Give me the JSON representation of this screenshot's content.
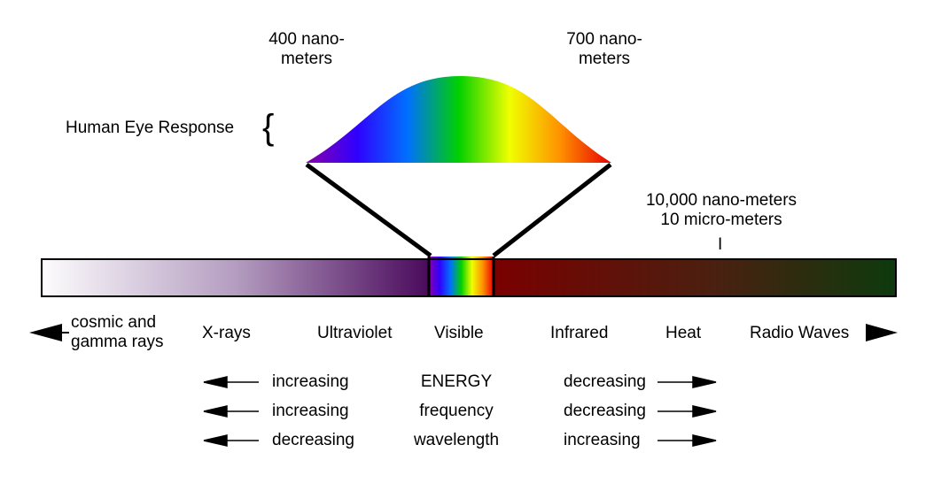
{
  "labels": {
    "wavelength_400": [
      "400 nano-",
      "meters"
    ],
    "wavelength_700": [
      "700 nano-",
      "meters"
    ],
    "eye_response": "Human Eye Response",
    "brace": "{",
    "long_wavelength": [
      "10,000 nano-meters",
      "10 micro-meters"
    ],
    "tick": "I"
  },
  "bands": {
    "cosmic": [
      "cosmic and",
      "gamma rays"
    ],
    "xrays": "X-rays",
    "ultraviolet": "Ultraviolet",
    "visible": "Visible",
    "infrared": "Infrared",
    "heat": "Heat",
    "radio": "Radio Waves"
  },
  "properties": [
    {
      "left": "increasing",
      "name": "ENERGY",
      "right": "decreasing"
    },
    {
      "left": "increasing",
      "name": "frequency",
      "right": "decreasing"
    },
    {
      "left": "decreasing",
      "name": "wavelength",
      "right": "increasing"
    }
  ],
  "colors": {
    "uv_start": "#fdfcfd",
    "uv_mid": "#b49dc0",
    "uv_end": "#4a0a5c",
    "ir_start": "#7a0000",
    "ir_mid": "#4a2010",
    "ir_end": "#0d3a0d",
    "spectrum": [
      "#8a00a8",
      "#3000ff",
      "#0070ff",
      "#00d000",
      "#f0ff00",
      "#ff9000",
      "#e80000"
    ]
  }
}
